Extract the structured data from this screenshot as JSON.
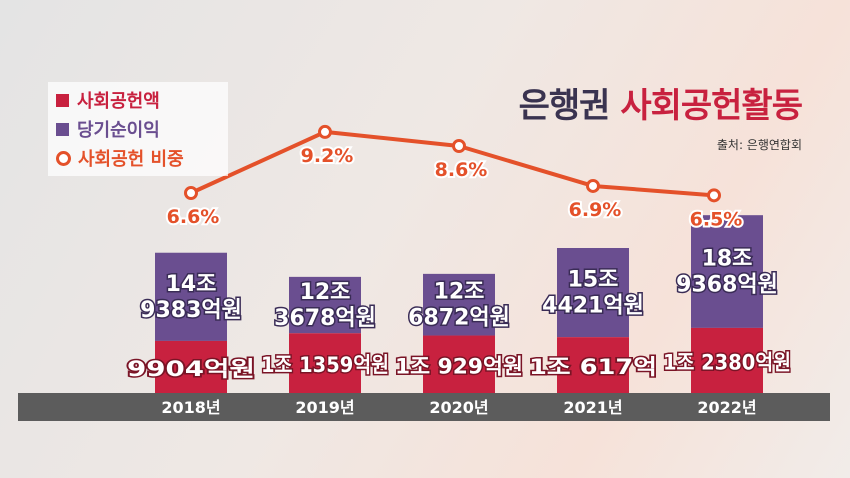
{
  "title": {
    "part1": "은행권",
    "part2": "사회공헌활동"
  },
  "source": "출처: 은행연합회",
  "legend": [
    {
      "label": "사회공헌액",
      "type": "square",
      "color": "#c8213f"
    },
    {
      "label": "당기순이익",
      "type": "square",
      "color": "#6a4e90"
    },
    {
      "label": "사회공헌 비중",
      "type": "circle",
      "color": "#e4512a"
    }
  ],
  "colors": {
    "contribution": "#c8213f",
    "net_income": "#6a4e90",
    "ratio_line": "#e4512a",
    "axis_band": "#5c5c5c"
  },
  "chart_data": {
    "type": "bar",
    "title": "은행권 사회공헌활동",
    "categories": [
      "2018년",
      "2019년",
      "2020년",
      "2021년",
      "2022년"
    ],
    "series": [
      {
        "name": "사회공헌액",
        "unit": "억원",
        "values": [
          9904,
          11359,
          10929,
          10617,
          12380
        ],
        "labels": [
          "9904억원",
          "1조 1359억원",
          "1조 929억원",
          "1조 617억",
          "1조 2380억원"
        ]
      },
      {
        "name": "당기순이익",
        "unit": "억원",
        "values": [
          149383,
          123678,
          126872,
          154421,
          189368
        ],
        "labels": [
          "14조 9383억원",
          "12조 3678억원",
          "12조 6872억원",
          "15조 4421억원",
          "18조 9368억원"
        ]
      },
      {
        "name": "사회공헌 비중",
        "type": "line",
        "unit": "%",
        "values": [
          6.6,
          9.2,
          8.6,
          6.9,
          6.5
        ],
        "labels": [
          "6.6%",
          "9.2%",
          "8.6%",
          "6.9%",
          "6.5%"
        ]
      }
    ],
    "legend_position": "top-left",
    "grid": false
  }
}
